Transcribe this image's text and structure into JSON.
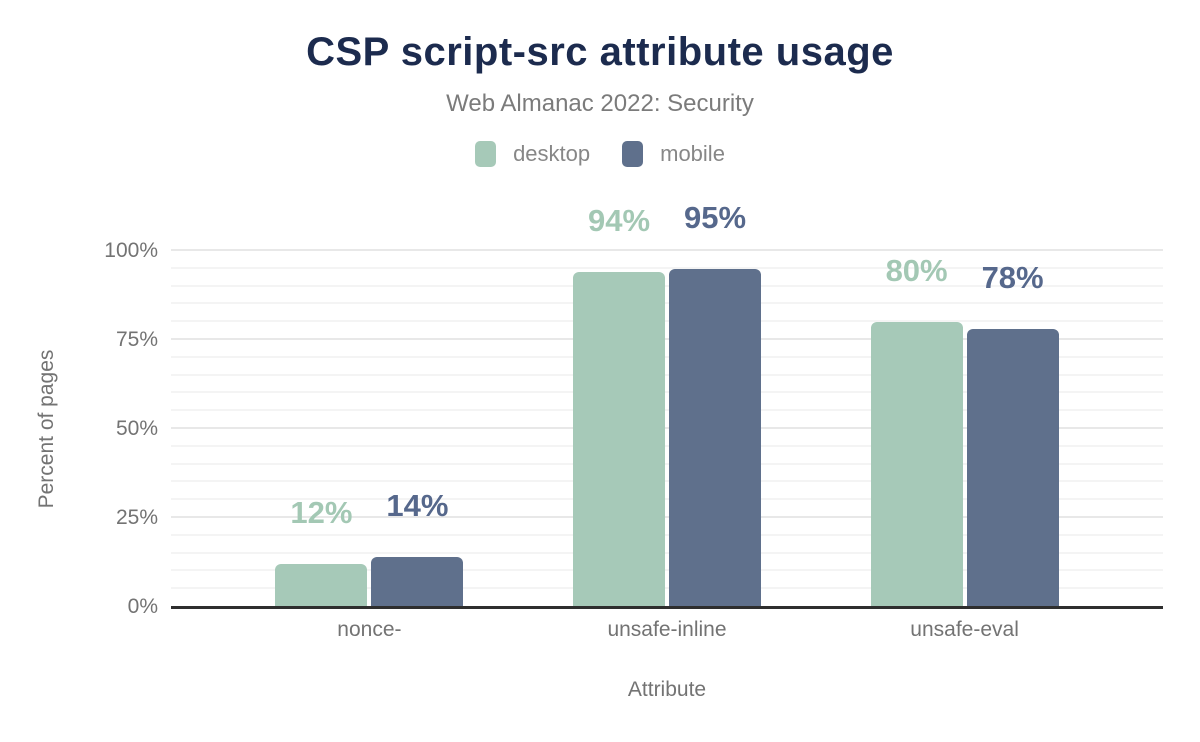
{
  "chart": {
    "title": "CSP script-src attribute usage",
    "subtitle": "Web Almanac 2022: Security"
  },
  "chart_data": {
    "type": "bar",
    "title": "CSP script-src attribute usage",
    "subtitle": "Web Almanac 2022: Security",
    "categories": [
      "nonce-",
      "unsafe-inline",
      "unsafe-eval"
    ],
    "series": [
      {
        "name": "desktop",
        "values": [
          12,
          94,
          80
        ],
        "color": "#a6c9b8",
        "label_color": "#a3c8b4"
      },
      {
        "name": "mobile",
        "values": [
          14,
          95,
          78
        ],
        "color": "#5f708c",
        "label_color": "#56688c"
      }
    ],
    "value_suffix": "%",
    "xlabel": "Attribute",
    "ylabel": "Percent of pages",
    "ylim": [
      0,
      100
    ],
    "yticks": [
      0,
      25,
      50,
      75,
      100
    ],
    "ytick_suffix": "%",
    "minor_grid_step": 5,
    "major_grid_step": 25,
    "grid": true,
    "legend_position": "top"
  },
  "colors": {
    "title": "#1c2b4e",
    "subtitle": "#7b7b7b",
    "legend_text": "#878787",
    "axis_text": "#737373",
    "major_grid": "#e8e8e8",
    "minor_grid": "#f4f4f4",
    "baseline": "#2e2e2e",
    "background": "#ffffff"
  }
}
